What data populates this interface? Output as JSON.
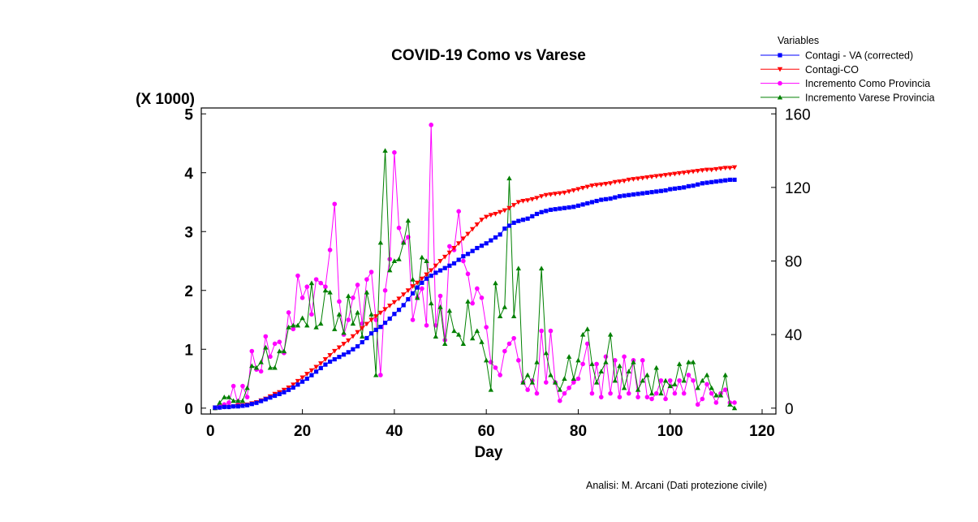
{
  "chart_data": {
    "type": "line",
    "title": "COVID-19 Como vs Varese",
    "xlabel": "Day",
    "ylabel_left_multiplier": "(X 1000)",
    "xlim": [
      -2,
      123
    ],
    "ylim_left": [
      -0.1,
      5.1
    ],
    "ylim_right": [
      -3.2,
      163.2
    ],
    "xticks": [
      0,
      20,
      40,
      60,
      80,
      100,
      120
    ],
    "yticks_left": [
      0,
      1,
      2,
      3,
      4,
      5
    ],
    "yticks_right": [
      0,
      40,
      80,
      120,
      160
    ],
    "grid": false,
    "legend": {
      "title": "Variables",
      "placement": "top-right",
      "entries": [
        {
          "label": "Contagi - VA (corrected)",
          "color": "#0000ff",
          "marker": "square"
        },
        {
          "label": "Contagi-CO",
          "color": "#ff0000",
          "marker": "triangle-down"
        },
        {
          "label": "Incremento Como Provincia",
          "color": "#ff00ff",
          "marker": "circle"
        },
        {
          "label": "Incremento  Varese Provincia",
          "color": "#008000",
          "marker": "triangle-up"
        }
      ]
    },
    "x": [
      1,
      2,
      3,
      4,
      5,
      6,
      7,
      8,
      9,
      10,
      11,
      12,
      13,
      14,
      15,
      16,
      17,
      18,
      19,
      20,
      21,
      22,
      23,
      24,
      25,
      26,
      27,
      28,
      29,
      30,
      31,
      32,
      33,
      34,
      35,
      36,
      37,
      38,
      39,
      40,
      41,
      42,
      43,
      44,
      45,
      46,
      47,
      48,
      49,
      50,
      51,
      52,
      53,
      54,
      55,
      56,
      57,
      58,
      59,
      60,
      61,
      62,
      63,
      64,
      65,
      66,
      67,
      68,
      69,
      70,
      71,
      72,
      73,
      74,
      75,
      76,
      77,
      78,
      79,
      80,
      81,
      82,
      83,
      84,
      85,
      86,
      87,
      88,
      89,
      90,
      91,
      92,
      93,
      94,
      95,
      96,
      97,
      98,
      99,
      100,
      101,
      102,
      103,
      104,
      105,
      106,
      107,
      108,
      109,
      110,
      111,
      112,
      113,
      114
    ],
    "series": [
      {
        "name": "Contagi - VA (corrected)",
        "axis": "left",
        "color": "#0000ff",
        "marker": "square",
        "values": [
          0.01,
          0.01,
          0.02,
          0.02,
          0.03,
          0.03,
          0.04,
          0.05,
          0.07,
          0.09,
          0.12,
          0.15,
          0.18,
          0.21,
          0.24,
          0.27,
          0.31,
          0.35,
          0.4,
          0.45,
          0.5,
          0.56,
          0.62,
          0.68,
          0.74,
          0.79,
          0.83,
          0.87,
          0.91,
          0.95,
          1.0,
          1.05,
          1.12,
          1.19,
          1.27,
          1.33,
          1.38,
          1.45,
          1.52,
          1.6,
          1.67,
          1.75,
          1.85,
          1.95,
          2.05,
          2.13,
          2.2,
          2.25,
          2.3,
          2.34,
          2.38,
          2.42,
          2.46,
          2.52,
          2.58,
          2.62,
          2.67,
          2.72,
          2.76,
          2.8,
          2.85,
          2.9,
          2.95,
          3.05,
          3.1,
          3.15,
          3.18,
          3.2,
          3.22,
          3.26,
          3.3,
          3.33,
          3.35,
          3.37,
          3.38,
          3.39,
          3.4,
          3.41,
          3.42,
          3.44,
          3.46,
          3.48,
          3.5,
          3.52,
          3.54,
          3.55,
          3.56,
          3.58,
          3.6,
          3.61,
          3.62,
          3.63,
          3.64,
          3.65,
          3.66,
          3.67,
          3.68,
          3.69,
          3.7,
          3.72,
          3.73,
          3.74,
          3.75,
          3.77,
          3.78,
          3.8,
          3.82,
          3.83,
          3.84,
          3.85,
          3.86,
          3.87,
          3.88,
          3.88
        ]
      },
      {
        "name": "Contagi-CO",
        "axis": "left",
        "color": "#ff0000",
        "marker": "triangle-down",
        "values": [
          0.01,
          0.01,
          0.02,
          0.02,
          0.03,
          0.04,
          0.05,
          0.06,
          0.08,
          0.1,
          0.13,
          0.16,
          0.2,
          0.24,
          0.27,
          0.31,
          0.35,
          0.4,
          0.46,
          0.52,
          0.58,
          0.64,
          0.7,
          0.76,
          0.83,
          0.9,
          0.97,
          1.03,
          1.09,
          1.15,
          1.22,
          1.29,
          1.36,
          1.43,
          1.5,
          1.56,
          1.62,
          1.68,
          1.74,
          1.8,
          1.86,
          1.93,
          2.0,
          2.07,
          2.13,
          2.2,
          2.27,
          2.34,
          2.42,
          2.5,
          2.57,
          2.64,
          2.72,
          2.8,
          2.88,
          2.96,
          3.04,
          3.12,
          3.2,
          3.25,
          3.28,
          3.3,
          3.33,
          3.36,
          3.4,
          3.45,
          3.5,
          3.52,
          3.53,
          3.55,
          3.57,
          3.6,
          3.62,
          3.63,
          3.64,
          3.65,
          3.66,
          3.68,
          3.7,
          3.72,
          3.74,
          3.76,
          3.78,
          3.79,
          3.8,
          3.81,
          3.82,
          3.84,
          3.85,
          3.86,
          3.88,
          3.89,
          3.9,
          3.91,
          3.92,
          3.93,
          3.94,
          3.95,
          3.96,
          3.97,
          3.98,
          3.99,
          4.0,
          4.01,
          4.02,
          4.03,
          4.04,
          4.05,
          4.05,
          4.06,
          4.07,
          4.08,
          4.08,
          4.09
        ]
      },
      {
        "name": "Incremento Como Provincia",
        "axis": "right",
        "color": "#ff00ff",
        "marker": "circle",
        "values": [
          0,
          1,
          2,
          3,
          12,
          2,
          12,
          6,
          31,
          21,
          20,
          39,
          28,
          35,
          36,
          30,
          52,
          43,
          72,
          60,
          66,
          51,
          70,
          68,
          66,
          86,
          111,
          58,
          40,
          48,
          60,
          67,
          46,
          70,
          74,
          48,
          18,
          64,
          81,
          139,
          98,
          90,
          93,
          48,
          60,
          65,
          45,
          154,
          45,
          61,
          37,
          88,
          86,
          107,
          80,
          73,
          57,
          65,
          60,
          44,
          25,
          22,
          18,
          31,
          35,
          38,
          26,
          14,
          10,
          15,
          8,
          42,
          14,
          42,
          14,
          4,
          8,
          11,
          14,
          16,
          24,
          35,
          8,
          24,
          6,
          28,
          8,
          26,
          6,
          28,
          8,
          26,
          6,
          26,
          6,
          5,
          8,
          15,
          5,
          15,
          8,
          15,
          8,
          18,
          15,
          2,
          5,
          13,
          8,
          3,
          8,
          10,
          3,
          3
        ]
      },
      {
        "name": "Incremento  Varese Provincia",
        "axis": "right",
        "color": "#008000",
        "marker": "triangle-up",
        "values": [
          0,
          3,
          6,
          6,
          4,
          4,
          4,
          11,
          23,
          22,
          25,
          33,
          22,
          22,
          31,
          31,
          44,
          45,
          45,
          49,
          45,
          68,
          44,
          46,
          64,
          63,
          43,
          51,
          41,
          61,
          46,
          52,
          39,
          63,
          51,
          18,
          90,
          140,
          75,
          80,
          81,
          90,
          102,
          70,
          60,
          82,
          80,
          57,
          39,
          55,
          35,
          53,
          42,
          40,
          35,
          58,
          38,
          42,
          36,
          26,
          10,
          68,
          50,
          55,
          125,
          50,
          76,
          14,
          18,
          14,
          25,
          76,
          30,
          18,
          14,
          10,
          16,
          28,
          16,
          26,
          40,
          43,
          24,
          14,
          20,
          25,
          40,
          15,
          23,
          11,
          20,
          25,
          10,
          15,
          18,
          8,
          22,
          8,
          15,
          12,
          13,
          24,
          15,
          25,
          25,
          11,
          15,
          18,
          11,
          7,
          7,
          18,
          2,
          0
        ]
      }
    ],
    "annotations": [
      "Analisi: M. Arcani (Dati protezione civile)"
    ]
  }
}
